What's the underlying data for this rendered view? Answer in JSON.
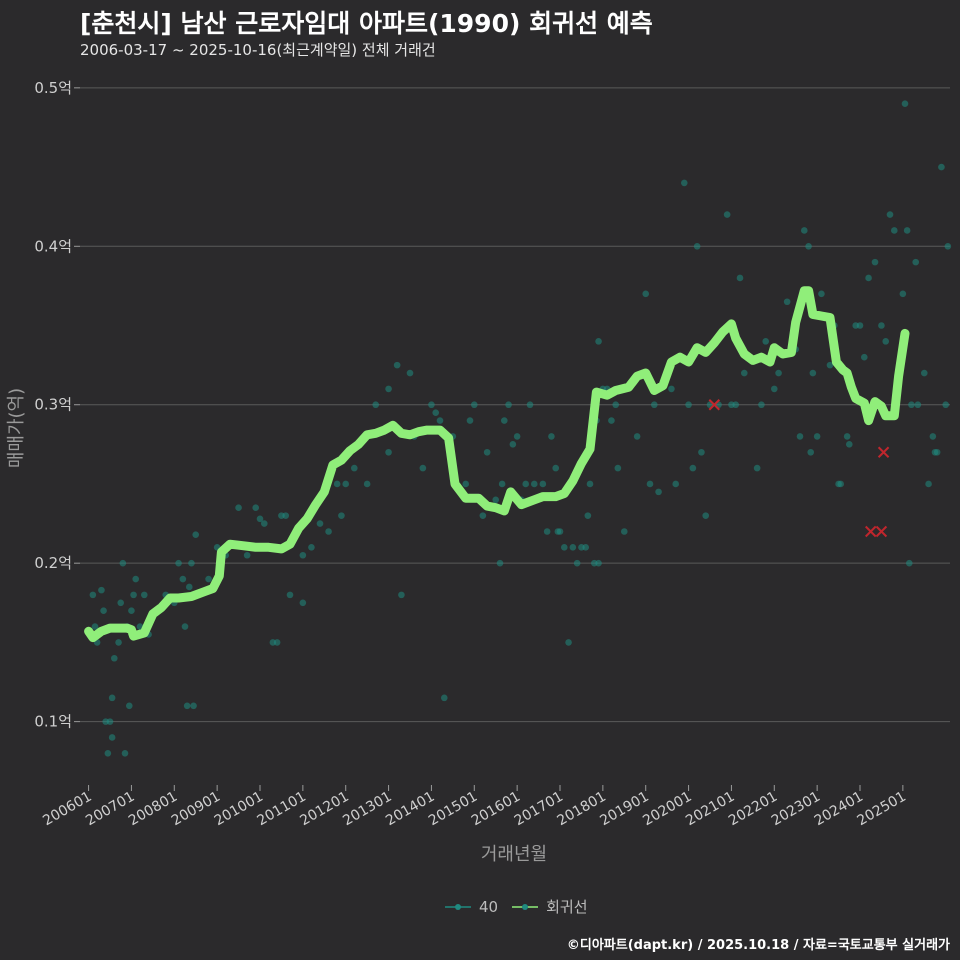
{
  "header": {
    "title": "[춘천시] 남산 근로자임대 아파트(1990) 회귀선 예측",
    "subtitle": "2006-03-17 ~ 2025-10-16(최근계약일) 전체 거래건"
  },
  "footer": {
    "credit": "©디아파트(dapt.kr) / 2025.10.18 / 자료=국토교통부 실거래가"
  },
  "legend": {
    "items": [
      {
        "label": "40",
        "color": "#1f8a80"
      },
      {
        "label": "회귀선",
        "color": "#90ee7a"
      }
    ]
  },
  "chart_data": {
    "type": "scatter",
    "title": "[춘천시] 남산 근로자임대 아파트(1990) 회귀선 예측",
    "xlabel": "거래년월",
    "ylabel": "매매가(억)",
    "ylim": [
      0.06,
      0.51
    ],
    "xlim": [
      2005.8,
      2026.1
    ],
    "y_ticks": [
      0.1,
      0.2,
      0.3,
      0.4,
      0.5
    ],
    "y_tick_labels": [
      "0.1억",
      "0.2억",
      "0.3억",
      "0.4억",
      "0.5억"
    ],
    "x_ticks": [
      2006,
      2007,
      2008,
      2009,
      2010,
      2011,
      2012,
      2013,
      2014,
      2015,
      2016,
      2017,
      2018,
      2019,
      2020,
      2021,
      2022,
      2023,
      2024,
      2025
    ],
    "x_tick_labels": [
      "200601",
      "200701",
      "200801",
      "200901",
      "201001",
      "201101",
      "201201",
      "201301",
      "201401",
      "201501",
      "201601",
      "201701",
      "201801",
      "201901",
      "202001",
      "202101",
      "202201",
      "202301",
      "202401",
      "202501"
    ],
    "colors": {
      "points": "#1f8a80",
      "regression": "#90ee7a",
      "cancelled": "#c0262d",
      "grid": "#5a5a5a"
    },
    "series": [
      {
        "name": "40",
        "points": [
          [
            2006.05,
            0.155
          ],
          [
            2006.1,
            0.18
          ],
          [
            2006.15,
            0.16
          ],
          [
            2006.2,
            0.15
          ],
          [
            2006.3,
            0.183
          ],
          [
            2006.35,
            0.17
          ],
          [
            2006.4,
            0.1
          ],
          [
            2006.45,
            0.08
          ],
          [
            2006.5,
            0.1
          ],
          [
            2006.55,
            0.115
          ],
          [
            2006.55,
            0.09
          ],
          [
            2006.6,
            0.14
          ],
          [
            2006.7,
            0.15
          ],
          [
            2006.75,
            0.175
          ],
          [
            2006.8,
            0.2
          ],
          [
            2006.85,
            0.08
          ],
          [
            2006.9,
            0.16
          ],
          [
            2006.95,
            0.11
          ],
          [
            2007.0,
            0.17
          ],
          [
            2007.05,
            0.18
          ],
          [
            2007.1,
            0.19
          ],
          [
            2007.2,
            0.16
          ],
          [
            2007.3,
            0.18
          ],
          [
            2007.4,
            0.155
          ],
          [
            2007.6,
            0.17
          ],
          [
            2007.8,
            0.18
          ],
          [
            2008.0,
            0.175
          ],
          [
            2008.1,
            0.2
          ],
          [
            2008.2,
            0.19
          ],
          [
            2008.25,
            0.16
          ],
          [
            2008.3,
            0.11
          ],
          [
            2008.35,
            0.185
          ],
          [
            2008.4,
            0.2
          ],
          [
            2008.45,
            0.11
          ],
          [
            2008.5,
            0.218
          ],
          [
            2008.8,
            0.19
          ],
          [
            2009.0,
            0.21
          ],
          [
            2009.2,
            0.205
          ],
          [
            2009.5,
            0.235
          ],
          [
            2009.7,
            0.205
          ],
          [
            2009.9,
            0.235
          ],
          [
            2010.0,
            0.228
          ],
          [
            2010.1,
            0.225
          ],
          [
            2010.2,
            0.21
          ],
          [
            2010.3,
            0.15
          ],
          [
            2010.4,
            0.15
          ],
          [
            2010.5,
            0.23
          ],
          [
            2010.6,
            0.23
          ],
          [
            2010.7,
            0.18
          ],
          [
            2011.0,
            0.205
          ],
          [
            2011.0,
            0.175
          ],
          [
            2011.2,
            0.21
          ],
          [
            2011.4,
            0.225
          ],
          [
            2011.6,
            0.22
          ],
          [
            2011.8,
            0.25
          ],
          [
            2011.9,
            0.23
          ],
          [
            2012.0,
            0.25
          ],
          [
            2012.2,
            0.26
          ],
          [
            2012.5,
            0.25
          ],
          [
            2012.7,
            0.3
          ],
          [
            2013.0,
            0.27
          ],
          [
            2013.0,
            0.31
          ],
          [
            2013.2,
            0.325
          ],
          [
            2013.3,
            0.18
          ],
          [
            2013.5,
            0.32
          ],
          [
            2013.6,
            0.28
          ],
          [
            2013.8,
            0.26
          ],
          [
            2014.0,
            0.3
          ],
          [
            2014.1,
            0.295
          ],
          [
            2014.2,
            0.29
          ],
          [
            2014.3,
            0.115
          ],
          [
            2014.5,
            0.28
          ],
          [
            2014.8,
            0.25
          ],
          [
            2014.9,
            0.29
          ],
          [
            2015.0,
            0.3
          ],
          [
            2015.1,
            0.24
          ],
          [
            2015.2,
            0.23
          ],
          [
            2015.3,
            0.27
          ],
          [
            2015.5,
            0.24
          ],
          [
            2015.6,
            0.2
          ],
          [
            2015.65,
            0.25
          ],
          [
            2015.7,
            0.29
          ],
          [
            2015.8,
            0.3
          ],
          [
            2015.9,
            0.275
          ],
          [
            2016.0,
            0.28
          ],
          [
            2016.1,
            0.24
          ],
          [
            2016.2,
            0.25
          ],
          [
            2016.3,
            0.3
          ],
          [
            2016.4,
            0.25
          ],
          [
            2016.6,
            0.25
          ],
          [
            2016.7,
            0.22
          ],
          [
            2016.8,
            0.28
          ],
          [
            2016.9,
            0.26
          ],
          [
            2016.95,
            0.22
          ],
          [
            2017.0,
            0.22
          ],
          [
            2017.1,
            0.21
          ],
          [
            2017.2,
            0.15
          ],
          [
            2017.3,
            0.21
          ],
          [
            2017.4,
            0.2
          ],
          [
            2017.5,
            0.21
          ],
          [
            2017.6,
            0.21
          ],
          [
            2017.65,
            0.23
          ],
          [
            2017.7,
            0.25
          ],
          [
            2017.8,
            0.2
          ],
          [
            2017.85,
            0.29
          ],
          [
            2017.9,
            0.34
          ],
          [
            2017.9,
            0.2
          ],
          [
            2018.0,
            0.31
          ],
          [
            2018.1,
            0.31
          ],
          [
            2018.2,
            0.29
          ],
          [
            2018.3,
            0.3
          ],
          [
            2018.35,
            0.26
          ],
          [
            2018.5,
            0.22
          ],
          [
            2018.8,
            0.28
          ],
          [
            2019.0,
            0.37
          ],
          [
            2019.1,
            0.25
          ],
          [
            2019.2,
            0.3
          ],
          [
            2019.3,
            0.245
          ],
          [
            2019.5,
            0.32
          ],
          [
            2019.6,
            0.31
          ],
          [
            2019.7,
            0.25
          ],
          [
            2019.9,
            0.44
          ],
          [
            2020.0,
            0.3
          ],
          [
            2020.1,
            0.26
          ],
          [
            2020.2,
            0.4
          ],
          [
            2020.3,
            0.27
          ],
          [
            2020.4,
            0.23
          ],
          [
            2020.5,
            0.3
          ],
          [
            2020.7,
            0.3
          ],
          [
            2020.9,
            0.42
          ],
          [
            2021.0,
            0.3
          ],
          [
            2021.1,
            0.3
          ],
          [
            2021.2,
            0.38
          ],
          [
            2021.3,
            0.32
          ],
          [
            2021.4,
            0.33
          ],
          [
            2021.6,
            0.26
          ],
          [
            2021.7,
            0.3
          ],
          [
            2021.8,
            0.34
          ],
          [
            2022.0,
            0.31
          ],
          [
            2022.1,
            0.32
          ],
          [
            2022.3,
            0.365
          ],
          [
            2022.5,
            0.335
          ],
          [
            2022.6,
            0.28
          ],
          [
            2022.7,
            0.41
          ],
          [
            2022.8,
            0.4
          ],
          [
            2022.85,
            0.27
          ],
          [
            2022.9,
            0.32
          ],
          [
            2023.0,
            0.28
          ],
          [
            2023.1,
            0.37
          ],
          [
            2023.3,
            0.325
          ],
          [
            2023.4,
            0.35
          ],
          [
            2023.5,
            0.25
          ],
          [
            2023.55,
            0.25
          ],
          [
            2023.7,
            0.28
          ],
          [
            2023.75,
            0.275
          ],
          [
            2023.9,
            0.35
          ],
          [
            2024.0,
            0.35
          ],
          [
            2024.1,
            0.33
          ],
          [
            2024.2,
            0.38
          ],
          [
            2024.35,
            0.39
          ],
          [
            2024.5,
            0.35
          ],
          [
            2024.6,
            0.34
          ],
          [
            2024.7,
            0.42
          ],
          [
            2024.8,
            0.41
          ],
          [
            2025.0,
            0.37
          ],
          [
            2025.05,
            0.49
          ],
          [
            2025.1,
            0.41
          ],
          [
            2025.15,
            0.2
          ],
          [
            2025.2,
            0.3
          ],
          [
            2025.3,
            0.39
          ],
          [
            2025.35,
            0.3
          ],
          [
            2025.5,
            0.32
          ],
          [
            2025.6,
            0.25
          ],
          [
            2025.7,
            0.28
          ],
          [
            2025.75,
            0.27
          ],
          [
            2025.8,
            0.27
          ],
          [
            2025.9,
            0.45
          ],
          [
            2026.0,
            0.3
          ],
          [
            2026.05,
            0.4
          ]
        ]
      },
      {
        "name": "회귀선",
        "points": [
          [
            2006.0,
            0.157
          ],
          [
            2006.1,
            0.153
          ],
          [
            2006.3,
            0.157
          ],
          [
            2006.5,
            0.159
          ],
          [
            2006.7,
            0.159
          ],
          [
            2006.9,
            0.159
          ],
          [
            2007.0,
            0.158
          ],
          [
            2007.05,
            0.154
          ],
          [
            2007.3,
            0.156
          ],
          [
            2007.5,
            0.168
          ],
          [
            2007.7,
            0.172
          ],
          [
            2007.9,
            0.178
          ],
          [
            2008.1,
            0.178
          ],
          [
            2008.4,
            0.179
          ],
          [
            2008.7,
            0.182
          ],
          [
            2008.9,
            0.184
          ],
          [
            2009.05,
            0.192
          ],
          [
            2009.1,
            0.207
          ],
          [
            2009.3,
            0.212
          ],
          [
            2009.6,
            0.211
          ],
          [
            2009.9,
            0.21
          ],
          [
            2010.2,
            0.21
          ],
          [
            2010.5,
            0.209
          ],
          [
            2010.7,
            0.212
          ],
          [
            2010.9,
            0.222
          ],
          [
            2011.1,
            0.228
          ],
          [
            2011.3,
            0.237
          ],
          [
            2011.5,
            0.245
          ],
          [
            2011.7,
            0.262
          ],
          [
            2011.9,
            0.265
          ],
          [
            2012.1,
            0.271
          ],
          [
            2012.3,
            0.275
          ],
          [
            2012.5,
            0.281
          ],
          [
            2012.7,
            0.282
          ],
          [
            2012.9,
            0.284
          ],
          [
            2013.1,
            0.287
          ],
          [
            2013.3,
            0.282
          ],
          [
            2013.5,
            0.281
          ],
          [
            2013.7,
            0.283
          ],
          [
            2013.9,
            0.284
          ],
          [
            2014.2,
            0.284
          ],
          [
            2014.4,
            0.279
          ],
          [
            2014.55,
            0.25
          ],
          [
            2014.8,
            0.241
          ],
          [
            2015.1,
            0.241
          ],
          [
            2015.3,
            0.236
          ],
          [
            2015.5,
            0.235
          ],
          [
            2015.7,
            0.233
          ],
          [
            2015.85,
            0.245
          ],
          [
            2016.1,
            0.237
          ],
          [
            2016.4,
            0.24
          ],
          [
            2016.6,
            0.242
          ],
          [
            2016.9,
            0.242
          ],
          [
            2017.1,
            0.244
          ],
          [
            2017.3,
            0.252
          ],
          [
            2017.5,
            0.263
          ],
          [
            2017.7,
            0.272
          ],
          [
            2017.85,
            0.308
          ],
          [
            2018.1,
            0.306
          ],
          [
            2018.3,
            0.309
          ],
          [
            2018.6,
            0.311
          ],
          [
            2018.8,
            0.318
          ],
          [
            2019.0,
            0.32
          ],
          [
            2019.2,
            0.309
          ],
          [
            2019.4,
            0.312
          ],
          [
            2019.6,
            0.327
          ],
          [
            2019.8,
            0.33
          ],
          [
            2020.0,
            0.327
          ],
          [
            2020.2,
            0.336
          ],
          [
            2020.4,
            0.333
          ],
          [
            2020.6,
            0.339
          ],
          [
            2020.8,
            0.346
          ],
          [
            2021.0,
            0.351
          ],
          [
            2021.1,
            0.342
          ],
          [
            2021.3,
            0.332
          ],
          [
            2021.5,
            0.328
          ],
          [
            2021.7,
            0.33
          ],
          [
            2021.9,
            0.327
          ],
          [
            2022.0,
            0.336
          ],
          [
            2022.2,
            0.332
          ],
          [
            2022.4,
            0.333
          ],
          [
            2022.5,
            0.352
          ],
          [
            2022.7,
            0.372
          ],
          [
            2022.8,
            0.372
          ],
          [
            2022.9,
            0.357
          ],
          [
            2023.1,
            0.356
          ],
          [
            2023.3,
            0.355
          ],
          [
            2023.45,
            0.327
          ],
          [
            2023.6,
            0.322
          ],
          [
            2023.7,
            0.32
          ],
          [
            2023.8,
            0.311
          ],
          [
            2023.9,
            0.304
          ],
          [
            2024.1,
            0.301
          ],
          [
            2024.2,
            0.29
          ],
          [
            2024.35,
            0.302
          ],
          [
            2024.5,
            0.299
          ],
          [
            2024.6,
            0.293
          ],
          [
            2024.8,
            0.293
          ],
          [
            2024.9,
            0.318
          ],
          [
            2025.05,
            0.345
          ]
        ]
      }
    ],
    "cancelled_points": [
      [
        2020.6,
        0.3
      ],
      [
        2024.55,
        0.27
      ],
      [
        2024.25,
        0.22
      ],
      [
        2024.5,
        0.22
      ]
    ]
  }
}
